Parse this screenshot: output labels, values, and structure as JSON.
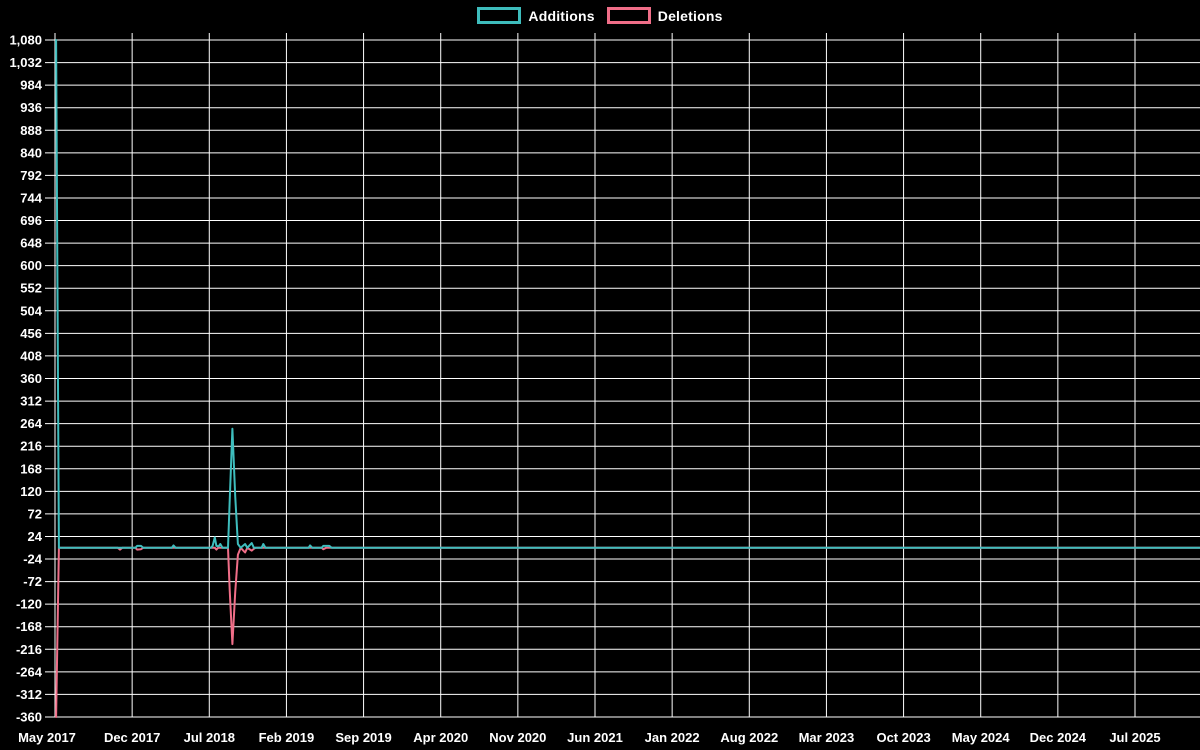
{
  "chart_data": {
    "type": "line",
    "title": "",
    "legend": [
      {
        "label": "Additions",
        "color": "#3ebdbd"
      },
      {
        "label": "Deletions",
        "color": "#f06e88"
      }
    ],
    "colors": {
      "background": "#000000",
      "grid": "#ffffff",
      "text": "#ffffff",
      "additions": "#3ebdbd",
      "deletions": "#f06e88"
    },
    "axes": {
      "y_min": -360,
      "y_max": 1080,
      "y_step": 48,
      "x_start_label": "May 2017",
      "x_end_label": "Jul 2025",
      "x_label_interval_months": 7,
      "grid": true
    },
    "y_tick_values": [
      1080,
      1032,
      984,
      936,
      888,
      840,
      792,
      744,
      696,
      648,
      600,
      552,
      504,
      456,
      408,
      360,
      312,
      264,
      216,
      168,
      120,
      72,
      24,
      -24,
      -72,
      -120,
      -168,
      -216,
      -264,
      -312,
      -360
    ],
    "y_tick_labels": [
      "1,080",
      "1,032",
      "984",
      "936",
      "888",
      "840",
      "792",
      "744",
      "696",
      "648",
      "600",
      "552",
      "504",
      "456",
      "408",
      "360",
      "312",
      "264",
      "216",
      "168",
      "120",
      "72",
      "24",
      "-24",
      "-72",
      "-120",
      "-168",
      "-216",
      "-264",
      "-312",
      "-360"
    ],
    "x_labels": [
      "May 2017",
      "Dec 2017",
      "Jul 2018",
      "Feb 2019",
      "Sep 2019",
      "Apr 2020",
      "Nov 2020",
      "Jun 2021",
      "Jan 2022",
      "Aug 2022",
      "Mar 2023",
      "Oct 2023",
      "May 2024",
      "Dec 2024",
      "Jul 2025"
    ],
    "series": [
      {
        "name": "Deletions",
        "color": "#f06e88",
        "points_unit": "[months_since_May_2017, value]",
        "points": [
          [
            0.1,
            -360
          ],
          [
            0.35,
            0
          ],
          [
            5.7,
            0
          ],
          [
            5.9,
            -4
          ],
          [
            6.1,
            0
          ],
          [
            7.3,
            0
          ],
          [
            7.45,
            -4
          ],
          [
            7.8,
            -3
          ],
          [
            8.0,
            0
          ],
          [
            14.5,
            0
          ],
          [
            14.65,
            -4
          ],
          [
            14.8,
            0
          ],
          [
            15.7,
            0
          ],
          [
            15.85,
            -90
          ],
          [
            16.1,
            -205
          ],
          [
            16.35,
            -95
          ],
          [
            16.6,
            -15
          ],
          [
            16.85,
            0
          ],
          [
            17.25,
            -10
          ],
          [
            17.45,
            0
          ],
          [
            17.85,
            -6
          ],
          [
            18.05,
            -2
          ],
          [
            18.2,
            0
          ],
          [
            24.2,
            0
          ],
          [
            24.35,
            -3
          ],
          [
            24.6,
            0
          ],
          [
            103.9,
            0
          ]
        ]
      },
      {
        "name": "Additions",
        "color": "#3ebdbd",
        "points_unit": "[months_since_May_2017, value]",
        "points": [
          [
            0.1,
            1080
          ],
          [
            0.35,
            0
          ],
          [
            5.7,
            0
          ],
          [
            7.3,
            0
          ],
          [
            7.45,
            4
          ],
          [
            7.8,
            4
          ],
          [
            8.0,
            0
          ],
          [
            10.6,
            0
          ],
          [
            10.75,
            5
          ],
          [
            10.95,
            0
          ],
          [
            14.15,
            0
          ],
          [
            14.3,
            4
          ],
          [
            14.5,
            22
          ],
          [
            14.65,
            4
          ],
          [
            14.85,
            3
          ],
          [
            15.0,
            8
          ],
          [
            15.2,
            0
          ],
          [
            15.7,
            0
          ],
          [
            15.85,
            100
          ],
          [
            16.1,
            253
          ],
          [
            16.35,
            110
          ],
          [
            16.6,
            8
          ],
          [
            16.85,
            0
          ],
          [
            17.25,
            8
          ],
          [
            17.45,
            0
          ],
          [
            17.85,
            10
          ],
          [
            18.05,
            0
          ],
          [
            18.75,
            0
          ],
          [
            18.9,
            8
          ],
          [
            19.1,
            0
          ],
          [
            23.0,
            0
          ],
          [
            23.15,
            5
          ],
          [
            23.35,
            0
          ],
          [
            24.2,
            0
          ],
          [
            24.35,
            4
          ],
          [
            24.9,
            4
          ],
          [
            25.1,
            0
          ],
          [
            103.9,
            0
          ]
        ]
      }
    ],
    "notable_points": [
      {
        "date": "May 2017",
        "additions": 1080,
        "deletions": -360
      },
      {
        "date": "Sep 2018",
        "additions": 253,
        "deletions": -205
      },
      {
        "date": "Jul 2018",
        "additions": 22,
        "deletions": -4
      }
    ]
  }
}
